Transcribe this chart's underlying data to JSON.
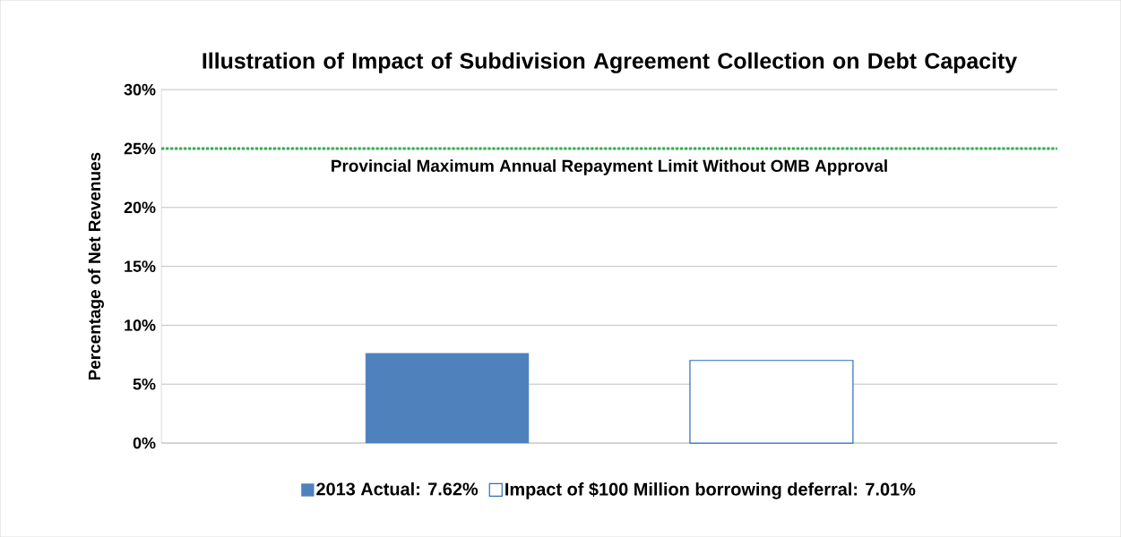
{
  "chart_data": {
    "type": "bar",
    "title": "Illustration of Impact of Subdivision Agreement Collection on Debt Capacity",
    "ylabel": "Percentage of Net Revenues",
    "categories": [
      null
    ],
    "series": [
      {
        "name": "2013 Actual: 7.62%",
        "color": "#4f81bd",
        "values": [
          7.62
        ]
      },
      {
        "name": "Impact of $100 Million borrowing deferral: 7.01%",
        "color": "#2a6ebb",
        "values": [
          7.01
        ]
      }
    ],
    "ylim": [
      0,
      30
    ],
    "yticks": [
      {
        "value": 0,
        "label": "0%"
      },
      {
        "value": 5,
        "label": "5%"
      },
      {
        "value": 10,
        "label": "10%"
      },
      {
        "value": 15,
        "label": "15%"
      },
      {
        "value": 20,
        "label": "20%"
      },
      {
        "value": 25,
        "label": "25%"
      },
      {
        "value": 30,
        "label": "30%"
      }
    ],
    "ref_lines": [
      {
        "axis": "y",
        "value": 25,
        "label": "Provincial Maximum Annual Repayment Limit Without OMB Approval",
        "color": "#2ab04a",
        "line_style": "dotted"
      }
    ],
    "grid": "y",
    "legend": "bottom",
    "tick_labels": "y"
  }
}
